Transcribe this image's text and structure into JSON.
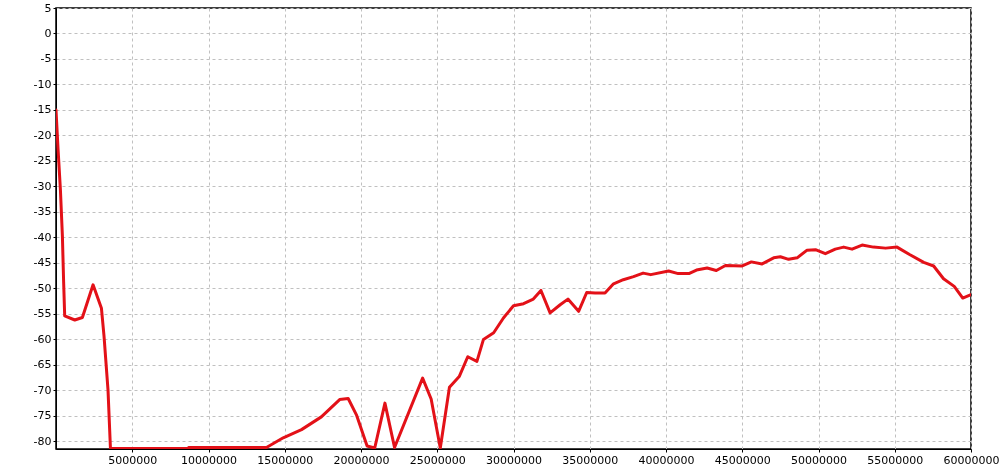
{
  "chart_data": {
    "type": "line",
    "x": [
      0,
      130000,
      290000,
      420000,
      500000,
      570000,
      1230000,
      1730000,
      2430000,
      2980000,
      3150000,
      3410000,
      3570000,
      8660000,
      8700000,
      13800000,
      14900000,
      16100000,
      17400000,
      18600000,
      19160000,
      19700000,
      20400000,
      20900000,
      21570000,
      22200000,
      24040000,
      24600000,
      25200000,
      25800000,
      26440000,
      27000000,
      27600000,
      28030000,
      28700000,
      29340000,
      30000000,
      30660000,
      31300000,
      31800000,
      32400000,
      33060000,
      33570000,
      34270000,
      34800000,
      35360000,
      36000000,
      36560000,
      37200000,
      37870000,
      38500000,
      39000000,
      40170000,
      40800000,
      41500000,
      42000000,
      42700000,
      43300000,
      43900000,
      45000000,
      45600000,
      46300000,
      47060000,
      47500000,
      48040000,
      48600000,
      49250000,
      49800000,
      50450000,
      51100000,
      51650000,
      52200000,
      52860000,
      53600000,
      54400000,
      55150000,
      56000000,
      56900000,
      57550000,
      58200000,
      58900000,
      59460000,
      60000000
    ],
    "series": [
      {
        "color": "#e31118",
        "values": [
          -15.0,
          -22.5,
          -30.7,
          -39.8,
          -48.7,
          -55.4,
          -56.2,
          -55.7,
          -49.3,
          -53.9,
          -59.4,
          -69.9,
          -81.4,
          -81.4,
          -81.2,
          -81.2,
          -79.3,
          -77.7,
          -75.2,
          -71.8,
          -71.6,
          -74.8,
          -80.9,
          -81.3,
          -72.5,
          -81.2,
          -67.6,
          -71.7,
          -81.3,
          -69.4,
          -67.3,
          -63.4,
          -64.3,
          -60.0,
          -58.7,
          -55.8,
          -53.4,
          -53.0,
          -52.1,
          -50.4,
          -54.8,
          -53.2,
          -52.1,
          -54.5,
          -50.8,
          -50.9,
          -50.9,
          -49.1,
          -48.3,
          -47.7,
          -47.0,
          -47.3,
          -46.6,
          -47.1,
          -47.1,
          -46.4,
          -46.0,
          -46.5,
          -45.5,
          -45.6,
          -44.8,
          -45.2,
          -44.0,
          -43.8,
          -44.3,
          -44.0,
          -42.5,
          -42.4,
          -43.2,
          -42.3,
          -41.9,
          -42.3,
          -41.5,
          -41.9,
          -42.1,
          -41.9,
          -43.4,
          -44.9,
          -45.6,
          -48.1,
          -49.6,
          -51.9,
          -51.2
        ]
      }
    ],
    "xlim": [
      0,
      60000000
    ],
    "ylim": [
      -81.5,
      5
    ],
    "xticks": [
      5000000,
      10000000,
      15000000,
      20000000,
      25000000,
      30000000,
      35000000,
      40000000,
      45000000,
      50000000,
      55000000,
      60000000
    ],
    "yticks": [
      5,
      0,
      -5,
      -10,
      -15,
      -20,
      -25,
      -30,
      -35,
      -40,
      -45,
      -50,
      -55,
      -60,
      -65,
      -70,
      -75,
      -80
    ],
    "grid": true,
    "line_style": "solid"
  }
}
